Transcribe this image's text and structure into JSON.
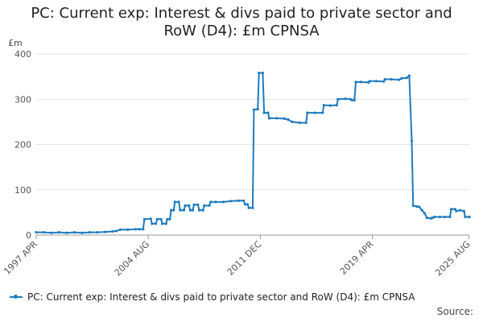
{
  "title_line1": "PC: Current exp: Interest & divs paid to private sector and",
  "title_line2": "RoW (D4): £m CPNSA",
  "unit": "£m",
  "legend_label": "PC: Current exp: Interest & divs paid to private sector and RoW (D4): £m CPNSA",
  "source_label": "Source:",
  "line_color": "#1f7bbf",
  "chart_data": {
    "type": "line",
    "ylim": [
      0,
      400
    ],
    "yticks": [
      0,
      100,
      200,
      300,
      400
    ],
    "xlim": [
      1997.25,
      2025.6
    ],
    "xticks": [
      {
        "label": "1997 APR",
        "x": 1997.25
      },
      {
        "label": "2004 AUG",
        "x": 2004.58
      },
      {
        "label": "2011 DEC",
        "x": 2011.92
      },
      {
        "label": "2019 APR",
        "x": 2019.25
      },
      {
        "label": "2025 AUG",
        "x": 2025.58
      }
    ],
    "grid": true,
    "series": [
      {
        "name": "PC: Current exp: Interest & divs paid to private sector and RoW (D4): £m CPNSA",
        "points": [
          [
            1997.25,
            6
          ],
          [
            1997.75,
            6
          ],
          [
            1998.25,
            5
          ],
          [
            1998.75,
            6
          ],
          [
            1999.25,
            5
          ],
          [
            1999.75,
            6
          ],
          [
            2000.25,
            5
          ],
          [
            2000.75,
            6
          ],
          [
            2001.25,
            6
          ],
          [
            2001.75,
            7
          ],
          [
            2002.25,
            8
          ],
          [
            2002.5,
            9
          ],
          [
            2002.75,
            12
          ],
          [
            2003.25,
            12
          ],
          [
            2003.75,
            13
          ],
          [
            2004.0,
            13
          ],
          [
            2004.25,
            13
          ],
          [
            2004.33,
            35
          ],
          [
            2004.75,
            36
          ],
          [
            2004.83,
            25
          ],
          [
            2005.08,
            25
          ],
          [
            2005.17,
            35
          ],
          [
            2005.42,
            35
          ],
          [
            2005.5,
            25
          ],
          [
            2005.75,
            25
          ],
          [
            2005.83,
            35
          ],
          [
            2006.0,
            35
          ],
          [
            2006.08,
            55
          ],
          [
            2006.25,
            55
          ],
          [
            2006.33,
            73
          ],
          [
            2006.58,
            73
          ],
          [
            2006.67,
            55
          ],
          [
            2006.92,
            55
          ],
          [
            2007.0,
            65
          ],
          [
            2007.25,
            65
          ],
          [
            2007.33,
            55
          ],
          [
            2007.5,
            55
          ],
          [
            2007.58,
            67
          ],
          [
            2007.83,
            67
          ],
          [
            2007.92,
            55
          ],
          [
            2008.17,
            55
          ],
          [
            2008.25,
            65
          ],
          [
            2008.58,
            65
          ],
          [
            2008.67,
            73
          ],
          [
            2009.0,
            73
          ],
          [
            2009.5,
            73
          ],
          [
            2010.0,
            75
          ],
          [
            2010.5,
            76
          ],
          [
            2010.83,
            76
          ],
          [
            2010.92,
            68
          ],
          [
            2011.08,
            68
          ],
          [
            2011.17,
            60
          ],
          [
            2011.42,
            60
          ],
          [
            2011.5,
            277
          ],
          [
            2011.75,
            278
          ],
          [
            2011.83,
            358
          ],
          [
            2012.08,
            358
          ],
          [
            2012.17,
            270
          ],
          [
            2012.42,
            270
          ],
          [
            2012.5,
            258
          ],
          [
            2013.0,
            258
          ],
          [
            2013.5,
            257
          ],
          [
            2013.75,
            255
          ],
          [
            2014.0,
            250
          ],
          [
            2014.5,
            248
          ],
          [
            2014.92,
            248
          ],
          [
            2015.0,
            270
          ],
          [
            2015.5,
            270
          ],
          [
            2016.0,
            270
          ],
          [
            2016.08,
            287
          ],
          [
            2016.5,
            286
          ],
          [
            2016.92,
            287
          ],
          [
            2017.0,
            300
          ],
          [
            2017.5,
            301
          ],
          [
            2017.83,
            300
          ],
          [
            2017.92,
            298
          ],
          [
            2018.08,
            298
          ],
          [
            2018.17,
            338
          ],
          [
            2018.5,
            338
          ],
          [
            2019.0,
            337
          ],
          [
            2019.08,
            340
          ],
          [
            2019.5,
            340
          ],
          [
            2020.0,
            339
          ],
          [
            2020.08,
            344
          ],
          [
            2020.5,
            344
          ],
          [
            2021.0,
            343
          ],
          [
            2021.17,
            346
          ],
          [
            2021.5,
            347
          ],
          [
            2021.67,
            352
          ],
          [
            2021.83,
            208
          ],
          [
            2021.92,
            65
          ],
          [
            2022.17,
            63
          ],
          [
            2022.33,
            62
          ],
          [
            2022.5,
            55
          ],
          [
            2022.67,
            48
          ],
          [
            2022.83,
            38
          ],
          [
            2023.08,
            37
          ],
          [
            2023.17,
            38
          ],
          [
            2023.33,
            40
          ],
          [
            2023.67,
            40
          ],
          [
            2024.0,
            40
          ],
          [
            2024.33,
            40
          ],
          [
            2024.42,
            57
          ],
          [
            2024.67,
            57
          ],
          [
            2024.75,
            53
          ],
          [
            2025.0,
            55
          ],
          [
            2025.25,
            53
          ],
          [
            2025.33,
            40
          ],
          [
            2025.58,
            40
          ],
          [
            2025.6,
            40
          ]
        ]
      }
    ]
  }
}
